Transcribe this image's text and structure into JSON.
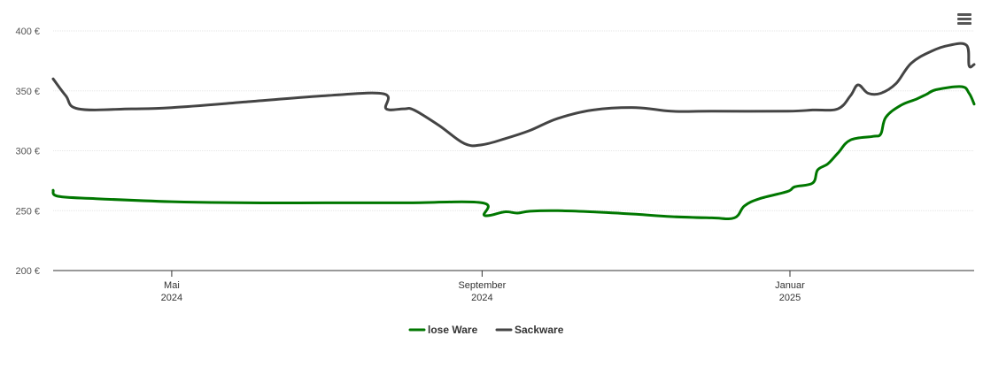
{
  "chart_data": {
    "type": "line",
    "title": "",
    "xlabel": "",
    "ylabel": "",
    "ylim": [
      200,
      400
    ],
    "yticks": [
      {
        "value": 200,
        "label": "200 €"
      },
      {
        "value": 250,
        "label": "250 €"
      },
      {
        "value": 300,
        "label": "300 €"
      },
      {
        "value": 350,
        "label": "350 €"
      },
      {
        "value": 400,
        "label": "400 €"
      }
    ],
    "xlim": [
      "2024-03-15",
      "2025-03-15"
    ],
    "xticks": [
      {
        "date": "2024-05-01",
        "month": "Mai",
        "year": "2024"
      },
      {
        "date": "2024-09-01",
        "month": "September",
        "year": "2024"
      },
      {
        "date": "2025-01-01",
        "month": "Januar",
        "year": "2025"
      }
    ],
    "grid": true,
    "legend_position": "bottom-center",
    "series": [
      {
        "name": "lose Ware",
        "color": "#007700",
        "points": [
          [
            "2024-03-15",
            267
          ],
          [
            "2024-03-17",
            262
          ],
          [
            "2024-04-01",
            260
          ],
          [
            "2024-05-01",
            257.5
          ],
          [
            "2024-06-01",
            256.5
          ],
          [
            "2024-07-01",
            256.5
          ],
          [
            "2024-08-01",
            256.5
          ],
          [
            "2024-09-01",
            256.5
          ],
          [
            "2024-09-02",
            246
          ],
          [
            "2024-09-10",
            249
          ],
          [
            "2024-09-15",
            248
          ],
          [
            "2024-09-20",
            249.5
          ],
          [
            "2024-10-01",
            250
          ],
          [
            "2024-10-15",
            249
          ],
          [
            "2024-11-01",
            247
          ],
          [
            "2024-11-15",
            245
          ],
          [
            "2024-12-01",
            244
          ],
          [
            "2024-12-10",
            244
          ],
          [
            "2024-12-14",
            254
          ],
          [
            "2024-12-20",
            260
          ],
          [
            "2024-12-31",
            266
          ],
          [
            "2025-01-03",
            270
          ],
          [
            "2025-01-10",
            273
          ],
          [
            "2025-01-12",
            284
          ],
          [
            "2025-01-16",
            289
          ],
          [
            "2025-01-20",
            298
          ],
          [
            "2025-01-25",
            309
          ],
          [
            "2025-02-03",
            312
          ],
          [
            "2025-02-06",
            314
          ],
          [
            "2025-02-08",
            328
          ],
          [
            "2025-02-14",
            338
          ],
          [
            "2025-02-20",
            343
          ],
          [
            "2025-02-24",
            347
          ],
          [
            "2025-02-28",
            351
          ],
          [
            "2025-03-10",
            353.5
          ],
          [
            "2025-03-13",
            348
          ],
          [
            "2025-03-15",
            339
          ]
        ]
      },
      {
        "name": "Sackware",
        "color": "#444444",
        "points": [
          [
            "2024-03-15",
            360
          ],
          [
            "2024-03-20",
            346
          ],
          [
            "2024-03-25",
            335
          ],
          [
            "2024-04-15",
            335
          ],
          [
            "2024-05-01",
            336
          ],
          [
            "2024-06-01",
            341
          ],
          [
            "2024-07-01",
            346
          ],
          [
            "2024-07-24",
            347.5
          ],
          [
            "2024-07-25",
            335
          ],
          [
            "2024-08-01",
            335
          ],
          [
            "2024-08-05",
            334
          ],
          [
            "2024-08-15",
            321
          ],
          [
            "2024-08-25",
            306
          ],
          [
            "2024-09-01",
            305
          ],
          [
            "2024-09-10",
            310
          ],
          [
            "2024-09-20",
            317
          ],
          [
            "2024-10-01",
            327
          ],
          [
            "2024-10-15",
            334
          ],
          [
            "2024-11-01",
            336
          ],
          [
            "2024-11-15",
            333
          ],
          [
            "2024-12-01",
            333
          ],
          [
            "2024-12-31",
            333
          ],
          [
            "2025-01-10",
            334
          ],
          [
            "2025-01-20",
            335
          ],
          [
            "2025-01-25",
            346
          ],
          [
            "2025-01-28",
            355
          ],
          [
            "2025-02-01",
            348
          ],
          [
            "2025-02-06",
            348
          ],
          [
            "2025-02-12",
            356
          ],
          [
            "2025-02-18",
            373
          ],
          [
            "2025-02-26",
            383
          ],
          [
            "2025-03-05",
            388
          ],
          [
            "2025-03-12",
            388
          ],
          [
            "2025-03-13",
            371
          ],
          [
            "2025-03-15",
            372
          ]
        ]
      }
    ]
  },
  "menu": {
    "icon": "hamburger-menu-icon"
  }
}
